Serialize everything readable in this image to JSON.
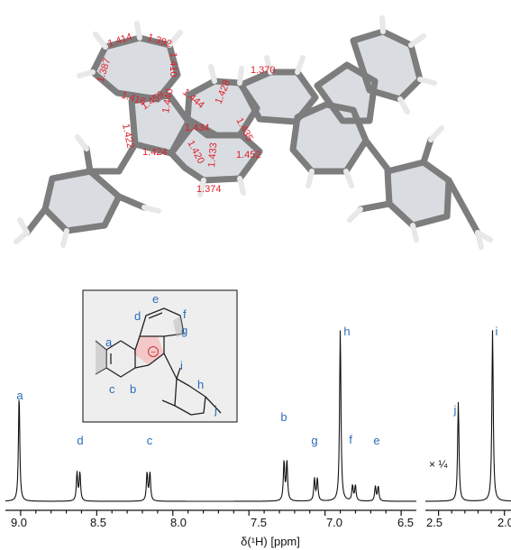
{
  "colors": {
    "bond_label": "#e0202a",
    "peak_label": "#2a6db5",
    "carbon": "#7d7d7d",
    "hydrogen": "#e8e8e8",
    "ring_fill": "#d9dde2",
    "inset_bg": "#eeeeee",
    "five_ring_highlight": "#f4c8c8",
    "spectrum": "#111111"
  },
  "bond_lengths": [
    "1.414",
    "1.392",
    "1.387",
    "1.410",
    "1.416",
    "1.459",
    "1.444",
    "1.428",
    "1.370",
    "1.422",
    "1.440",
    "1.434",
    "1.435",
    "1.424",
    "1.420",
    "1.433",
    "1.452",
    "1.374"
  ],
  "inset": {
    "proton_labels": [
      "a",
      "b",
      "c",
      "d",
      "e",
      "f",
      "g",
      "h",
      "i",
      "j"
    ],
    "charge_symbol": "−"
  },
  "spectrum": {
    "peak_labels": [
      "a",
      "d",
      "c",
      "b",
      "g",
      "h",
      "f",
      "e",
      "j",
      "i"
    ],
    "scale_note": "× ¼",
    "axis_title": "δ(¹H) [ppm]",
    "tick_labels": [
      "9.0",
      "8.5",
      "8.0",
      "7.5",
      "7.0",
      "6.5",
      "2.5",
      "2.0"
    ]
  },
  "chart_data": {
    "type": "line",
    "title": "",
    "xlabel": "δ(¹H) [ppm]",
    "ylabel": "",
    "x_reversed": true,
    "xlim_panels": [
      [
        9.1,
        6.4
      ],
      [
        2.6,
        1.95
      ]
    ],
    "scale_factor_right_panel": "× ¼",
    "peaks": [
      {
        "label": "a",
        "shift_ppm": 9.01,
        "relative_height": 0.62
      },
      {
        "label": "d",
        "shift_ppm": 8.62,
        "relative_height": 0.33
      },
      {
        "label": "c",
        "shift_ppm": 8.16,
        "relative_height": 0.33
      },
      {
        "label": "b",
        "shift_ppm": 7.26,
        "relative_height": 0.46
      },
      {
        "label": "g",
        "shift_ppm": 7.06,
        "relative_height": 0.26
      },
      {
        "label": "h",
        "shift_ppm": 6.9,
        "relative_height": 1.0
      },
      {
        "label": "f",
        "shift_ppm": 6.81,
        "relative_height": 0.18
      },
      {
        "label": "e",
        "shift_ppm": 6.66,
        "relative_height": 0.17
      },
      {
        "label": "j",
        "shift_ppm": 2.35,
        "relative_height": 0.58
      },
      {
        "label": "i",
        "shift_ppm": 2.09,
        "relative_height": 1.0
      }
    ]
  }
}
